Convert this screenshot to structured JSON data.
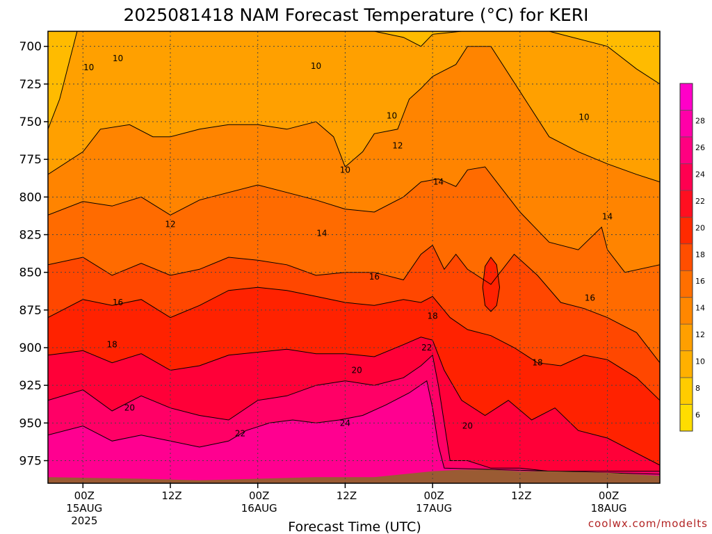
{
  "chart_data": {
    "type": "heatmap",
    "title": "2025081418 NAM Forecast Temperature (°C) for KERI",
    "xlabel": "Forecast Time (UTC)",
    "ylabel": "",
    "credit": "coolwx.com/modelts",
    "x_range_hours": [
      -6,
      99
    ],
    "y_range_hpa": [
      690,
      990
    ],
    "y_ticks": [
      "700",
      "725",
      "750",
      "775",
      "800",
      "825",
      "850",
      "875",
      "900",
      "925",
      "950",
      "975"
    ],
    "x_ticks": [
      {
        "hour": 0,
        "label": "00Z",
        "sub1": "15AUG",
        "sub2": "2025"
      },
      {
        "hour": 15,
        "label": "12Z",
        "sub1": "",
        "sub2": ""
      },
      {
        "hour": 30,
        "label": "00Z",
        "sub1": "16AUG",
        "sub2": ""
      },
      {
        "hour": 45,
        "label": "12Z",
        "sub1": "",
        "sub2": ""
      },
      {
        "hour": 60,
        "label": "00Z",
        "sub1": "17AUG",
        "sub2": ""
      },
      {
        "hour": 75,
        "label": "12Z",
        "sub1": "",
        "sub2": ""
      },
      {
        "hour": 90,
        "label": "00Z",
        "sub1": "18AUG",
        "sub2": ""
      }
    ],
    "grid": true,
    "colorbar": {
      "levels": [
        "6",
        "8",
        "10",
        "12",
        "14",
        "16",
        "18",
        "20",
        "22",
        "24",
        "26",
        "28"
      ],
      "colors": [
        "#ffdd00",
        "#ffcc00",
        "#ffb000",
        "#ff9f00",
        "#ff8700",
        "#ff6f00",
        "#ff4e00",
        "#ff2a00",
        "#ff0f20",
        "#ff0050",
        "#ff0080",
        "#ff00a8",
        "#ff00c8"
      ]
    },
    "band_colors": [
      "#ffbb00",
      "#ffa000",
      "#ff8400",
      "#ff6b00",
      "#ff4700",
      "#ff2200",
      "#ff0038",
      "#ff0066",
      "#ff0090",
      "#ff00b4",
      "#ff00c8"
    ],
    "ground_color": "#9a5b33",
    "contours": [
      {
        "level": "10",
        "points": [
          [
            -6,
            755
          ],
          [
            -4,
            735
          ],
          [
            -2,
            705
          ],
          [
            -1,
            690
          ],
          [
            10,
            690
          ],
          [
            20,
            690
          ],
          [
            30,
            690
          ],
          [
            40,
            690
          ],
          [
            50,
            690
          ],
          [
            55,
            694
          ],
          [
            58,
            700
          ],
          [
            60,
            692
          ],
          [
            65,
            690
          ],
          [
            70,
            690
          ],
          [
            80,
            690
          ],
          [
            90,
            700
          ],
          [
            95,
            715
          ],
          [
            99,
            725
          ]
        ]
      },
      {
        "level": "12",
        "points": [
          [
            -6,
            785
          ],
          [
            0,
            770
          ],
          [
            3,
            755
          ],
          [
            8,
            752
          ],
          [
            12,
            760
          ],
          [
            15,
            760
          ],
          [
            20,
            755
          ],
          [
            25,
            752
          ],
          [
            30,
            752
          ],
          [
            35,
            755
          ],
          [
            40,
            750
          ],
          [
            43,
            760
          ],
          [
            45,
            780
          ],
          [
            48,
            770
          ],
          [
            50,
            758
          ],
          [
            54,
            755
          ],
          [
            56,
            735
          ],
          [
            58,
            728
          ],
          [
            60,
            720
          ],
          [
            64,
            712
          ],
          [
            66,
            700
          ],
          [
            70,
            700
          ],
          [
            75,
            730
          ],
          [
            80,
            760
          ],
          [
            85,
            770
          ],
          [
            90,
            778
          ],
          [
            95,
            785
          ],
          [
            99,
            790
          ]
        ]
      },
      {
        "level": "14",
        "points": [
          [
            -6,
            812
          ],
          [
            0,
            803
          ],
          [
            5,
            806
          ],
          [
            10,
            800
          ],
          [
            15,
            812
          ],
          [
            20,
            802
          ],
          [
            25,
            797
          ],
          [
            30,
            792
          ],
          [
            35,
            797
          ],
          [
            40,
            802
          ],
          [
            45,
            808
          ],
          [
            50,
            810
          ],
          [
            55,
            800
          ],
          [
            58,
            790
          ],
          [
            61,
            788
          ],
          [
            64,
            793
          ],
          [
            66,
            782
          ],
          [
            69,
            780
          ],
          [
            71,
            790
          ],
          [
            75,
            810
          ],
          [
            80,
            830
          ],
          [
            85,
            835
          ],
          [
            89,
            820
          ],
          [
            90,
            835
          ],
          [
            93,
            850
          ],
          [
            99,
            845
          ]
        ]
      },
      {
        "level": "16",
        "points": [
          [
            -6,
            845
          ],
          [
            0,
            840
          ],
          [
            5,
            852
          ],
          [
            10,
            844
          ],
          [
            15,
            852
          ],
          [
            20,
            848
          ],
          [
            25,
            840
          ],
          [
            30,
            842
          ],
          [
            35,
            845
          ],
          [
            40,
            852
          ],
          [
            45,
            850
          ],
          [
            50,
            850
          ],
          [
            55,
            855
          ],
          [
            58,
            838
          ],
          [
            60,
            832
          ],
          [
            62,
            848
          ],
          [
            64,
            838
          ],
          [
            66,
            848
          ],
          [
            70,
            858
          ],
          [
            74,
            838
          ],
          [
            78,
            852
          ],
          [
            82,
            870
          ],
          [
            86,
            874
          ],
          [
            90,
            880
          ],
          [
            95,
            890
          ],
          [
            99,
            910
          ]
        ]
      },
      {
        "level": "18",
        "points": [
          [
            -6,
            880
          ],
          [
            0,
            868
          ],
          [
            5,
            872
          ],
          [
            10,
            868
          ],
          [
            15,
            880
          ],
          [
            20,
            872
          ],
          [
            25,
            862
          ],
          [
            30,
            860
          ],
          [
            35,
            862
          ],
          [
            40,
            866
          ],
          [
            45,
            870
          ],
          [
            50,
            872
          ],
          [
            55,
            868
          ],
          [
            58,
            870
          ],
          [
            60,
            866
          ],
          [
            63,
            880
          ],
          [
            66,
            888
          ],
          [
            70,
            892
          ],
          [
            74,
            900
          ],
          [
            78,
            910
          ],
          [
            82,
            912
          ],
          [
            86,
            905
          ],
          [
            90,
            908
          ],
          [
            95,
            920
          ],
          [
            99,
            935
          ]
        ]
      },
      {
        "level": "20",
        "points": [
          [
            -6,
            905
          ],
          [
            0,
            902
          ],
          [
            5,
            910
          ],
          [
            10,
            904
          ],
          [
            15,
            915
          ],
          [
            20,
            912
          ],
          [
            25,
            905
          ],
          [
            30,
            903
          ],
          [
            35,
            901
          ],
          [
            40,
            904
          ],
          [
            45,
            904
          ],
          [
            50,
            906
          ],
          [
            55,
            898
          ],
          [
            58,
            893
          ],
          [
            60,
            895
          ],
          [
            62,
            915
          ],
          [
            65,
            935
          ],
          [
            69,
            945
          ],
          [
            73,
            935
          ],
          [
            77,
            948
          ],
          [
            81,
            940
          ],
          [
            85,
            955
          ],
          [
            90,
            960
          ],
          [
            95,
            970
          ],
          [
            99,
            978
          ]
        ]
      },
      {
        "level": "22",
        "points": [
          [
            -6,
            935
          ],
          [
            0,
            928
          ],
          [
            5,
            942
          ],
          [
            10,
            932
          ],
          [
            15,
            940
          ],
          [
            20,
            945
          ],
          [
            25,
            948
          ],
          [
            30,
            935
          ],
          [
            35,
            932
          ],
          [
            40,
            925
          ],
          [
            45,
            922
          ],
          [
            50,
            925
          ],
          [
            55,
            920
          ],
          [
            58,
            912
          ],
          [
            60,
            905
          ],
          [
            61,
            925
          ],
          [
            62,
            950
          ],
          [
            63,
            975
          ],
          [
            66,
            975
          ],
          [
            70,
            980
          ],
          [
            75,
            980
          ],
          [
            80,
            982
          ],
          [
            85,
            982
          ],
          [
            90,
            982
          ],
          [
            99,
            982
          ]
        ]
      },
      {
        "level": "24",
        "points": [
          [
            -6,
            958
          ],
          [
            0,
            952
          ],
          [
            5,
            962
          ],
          [
            10,
            958
          ],
          [
            15,
            962
          ],
          [
            20,
            966
          ],
          [
            25,
            962
          ],
          [
            28,
            955
          ],
          [
            32,
            950
          ],
          [
            36,
            948
          ],
          [
            40,
            950
          ],
          [
            44,
            948
          ],
          [
            48,
            945
          ],
          [
            52,
            938
          ],
          [
            56,
            930
          ],
          [
            59,
            922
          ],
          [
            60,
            940
          ],
          [
            61,
            965
          ],
          [
            62,
            980
          ],
          [
            99,
            984
          ]
        ]
      }
    ],
    "warm_pockets": [
      {
        "level": "18",
        "points": [
          [
            69,
            846
          ],
          [
            70,
            840
          ],
          [
            71,
            845
          ],
          [
            71.5,
            860
          ],
          [
            71,
            872
          ],
          [
            70,
            876
          ],
          [
            69,
            872
          ],
          [
            68.6,
            860
          ]
        ]
      }
    ],
    "contour_labels": [
      {
        "text": "10",
        "hour": 1,
        "hpa": 714
      },
      {
        "text": "10",
        "hour": 6,
        "hpa": 708
      },
      {
        "text": "10",
        "hour": 40,
        "hpa": 713
      },
      {
        "text": "10",
        "hour": 53,
        "hpa": 746
      },
      {
        "text": "10",
        "hour": 45,
        "hpa": 782
      },
      {
        "text": "10",
        "hour": 86,
        "hpa": 747
      },
      {
        "text": "12",
        "hour": 15,
        "hpa": 818
      },
      {
        "text": "12",
        "hour": 54,
        "hpa": 766
      },
      {
        "text": "14",
        "hour": 41,
        "hpa": 824
      },
      {
        "text": "14",
        "hour": 61,
        "hpa": 790
      },
      {
        "text": "14",
        "hour": 90,
        "hpa": 813
      },
      {
        "text": "16",
        "hour": 6,
        "hpa": 870
      },
      {
        "text": "16",
        "hour": 50,
        "hpa": 853
      },
      {
        "text": "16",
        "hour": 87,
        "hpa": 867
      },
      {
        "text": "18",
        "hour": 5,
        "hpa": 898
      },
      {
        "text": "18",
        "hour": 60,
        "hpa": 879
      },
      {
        "text": "18",
        "hour": 78,
        "hpa": 910
      },
      {
        "text": "20",
        "hour": 8,
        "hpa": 940
      },
      {
        "text": "20",
        "hour": 47,
        "hpa": 915
      },
      {
        "text": "20",
        "hour": 66,
        "hpa": 952
      },
      {
        "text": "22",
        "hour": 27,
        "hpa": 957
      },
      {
        "text": "22",
        "hour": 59,
        "hpa": 900
      },
      {
        "text": "24",
        "hour": 45,
        "hpa": 950
      }
    ],
    "ground_surface": [
      [
        -6,
        986
      ],
      [
        10,
        987
      ],
      [
        20,
        988
      ],
      [
        30,
        987
      ],
      [
        40,
        986
      ],
      [
        50,
        986
      ],
      [
        55,
        984
      ],
      [
        60,
        982
      ],
      [
        65,
        981
      ],
      [
        70,
        981
      ],
      [
        75,
        982
      ],
      [
        80,
        982
      ],
      [
        90,
        983
      ],
      [
        99,
        985
      ]
    ]
  }
}
